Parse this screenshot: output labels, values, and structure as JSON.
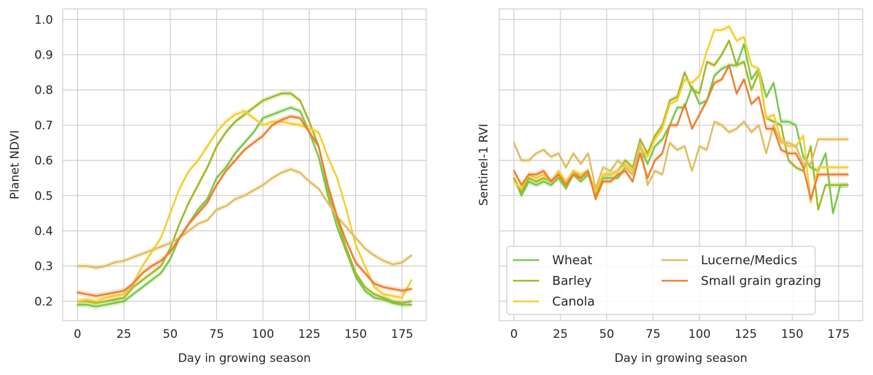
{
  "colors": {
    "Wheat": "#77c84a",
    "Barley": "#a1b825",
    "Canola": "#f5cf30",
    "Lucerne/Medics": "#e0bd63",
    "Small grain grazing": "#ee7f2f"
  },
  "chart_data": [
    {
      "type": "line",
      "xlabel": "Day in growing season",
      "ylabel": "Planet NDVI",
      "xlim": [
        -8,
        188
      ],
      "ylim": [
        0.145,
        1.03
      ],
      "xticks": [
        0,
        25,
        50,
        75,
        100,
        125,
        150,
        175
      ],
      "yticks": [
        0.2,
        0.3,
        0.4,
        0.5,
        0.6,
        0.7,
        0.8,
        0.9,
        1.0
      ],
      "grid": true,
      "series": [
        {
          "name": "Wheat",
          "x": [
            0,
            5,
            10,
            15,
            20,
            25,
            30,
            35,
            40,
            45,
            50,
            55,
            60,
            65,
            70,
            75,
            80,
            85,
            90,
            95,
            100,
            105,
            110,
            115,
            120,
            125,
            130,
            135,
            140,
            145,
            150,
            155,
            160,
            165,
            170,
            175,
            180
          ],
          "y": [
            0.19,
            0.19,
            0.185,
            0.19,
            0.195,
            0.2,
            0.22,
            0.24,
            0.26,
            0.28,
            0.32,
            0.38,
            0.42,
            0.46,
            0.49,
            0.55,
            0.58,
            0.62,
            0.65,
            0.68,
            0.72,
            0.73,
            0.74,
            0.75,
            0.74,
            0.68,
            0.61,
            0.5,
            0.41,
            0.34,
            0.27,
            0.23,
            0.21,
            0.205,
            0.195,
            0.19,
            0.19
          ]
        },
        {
          "name": "Barley",
          "x": [
            0,
            5,
            10,
            15,
            20,
            25,
            30,
            35,
            40,
            45,
            50,
            55,
            60,
            65,
            70,
            75,
            80,
            85,
            90,
            95,
            100,
            105,
            110,
            115,
            120,
            125,
            130,
            135,
            140,
            145,
            150,
            155,
            160,
            165,
            170,
            175,
            180
          ],
          "y": [
            0.2,
            0.2,
            0.195,
            0.2,
            0.205,
            0.21,
            0.24,
            0.26,
            0.28,
            0.3,
            0.35,
            0.42,
            0.48,
            0.53,
            0.58,
            0.64,
            0.68,
            0.71,
            0.73,
            0.75,
            0.77,
            0.78,
            0.79,
            0.79,
            0.77,
            0.71,
            0.64,
            0.52,
            0.43,
            0.35,
            0.28,
            0.24,
            0.22,
            0.21,
            0.2,
            0.195,
            0.2
          ]
        },
        {
          "name": "Canola",
          "x": [
            0,
            5,
            10,
            15,
            20,
            25,
            30,
            35,
            40,
            45,
            50,
            55,
            60,
            65,
            70,
            75,
            80,
            85,
            90,
            95,
            100,
            105,
            110,
            115,
            120,
            125,
            130,
            135,
            140,
            145,
            150,
            155,
            160,
            165,
            170,
            175,
            180
          ],
          "y": [
            0.2,
            0.205,
            0.2,
            0.21,
            0.215,
            0.22,
            0.25,
            0.3,
            0.34,
            0.38,
            0.45,
            0.52,
            0.57,
            0.6,
            0.64,
            0.68,
            0.71,
            0.73,
            0.74,
            0.72,
            0.7,
            0.71,
            0.71,
            0.705,
            0.7,
            0.69,
            0.68,
            0.61,
            0.55,
            0.46,
            0.36,
            0.3,
            0.24,
            0.22,
            0.215,
            0.21,
            0.26
          ]
        },
        {
          "name": "Lucerne/Medics",
          "x": [
            0,
            5,
            10,
            15,
            20,
            25,
            30,
            35,
            40,
            45,
            50,
            55,
            60,
            65,
            70,
            75,
            80,
            85,
            90,
            95,
            100,
            105,
            110,
            115,
            120,
            125,
            130,
            135,
            140,
            145,
            150,
            155,
            160,
            165,
            170,
            175,
            180
          ],
          "y": [
            0.3,
            0.3,
            0.295,
            0.3,
            0.31,
            0.315,
            0.325,
            0.335,
            0.345,
            0.355,
            0.365,
            0.38,
            0.4,
            0.42,
            0.43,
            0.46,
            0.47,
            0.49,
            0.5,
            0.515,
            0.53,
            0.55,
            0.565,
            0.575,
            0.565,
            0.54,
            0.52,
            0.48,
            0.44,
            0.41,
            0.38,
            0.35,
            0.33,
            0.315,
            0.305,
            0.31,
            0.33
          ]
        },
        {
          "name": "Small grain grazing",
          "x": [
            0,
            5,
            10,
            15,
            20,
            25,
            30,
            35,
            40,
            45,
            50,
            55,
            60,
            65,
            70,
            75,
            80,
            85,
            90,
            95,
            100,
            105,
            110,
            115,
            120,
            125,
            130,
            135,
            140,
            145,
            150,
            155,
            160,
            165,
            170,
            175,
            180
          ],
          "y": [
            0.225,
            0.22,
            0.215,
            0.22,
            0.225,
            0.23,
            0.25,
            0.28,
            0.3,
            0.315,
            0.34,
            0.38,
            0.42,
            0.45,
            0.48,
            0.53,
            0.57,
            0.6,
            0.63,
            0.65,
            0.67,
            0.7,
            0.715,
            0.725,
            0.72,
            0.68,
            0.64,
            0.53,
            0.44,
            0.37,
            0.31,
            0.28,
            0.25,
            0.24,
            0.235,
            0.23,
            0.235
          ]
        }
      ]
    },
    {
      "type": "line",
      "xlabel": "Day in growing season",
      "ylabel": "Sentinel-1 RVI",
      "xlim": [
        -8,
        188
      ],
      "ylim": [
        0.145,
        1.03
      ],
      "xticks": [
        0,
        25,
        50,
        75,
        100,
        125,
        150,
        175
      ],
      "yticks": [
        0.2,
        0.3,
        0.4,
        0.5,
        0.6,
        0.7,
        0.8,
        0.9,
        1.0
      ],
      "grid": true,
      "legend": {
        "placement": "lower-left",
        "columns": 2,
        "entries": [
          "Wheat",
          "Barley",
          "Canola",
          "Lucerne/Medics",
          "Small grain grazing"
        ]
      },
      "series": [
        {
          "name": "Wheat",
          "x": [
            0,
            4,
            8,
            12,
            16,
            20,
            24,
            28,
            32,
            36,
            40,
            44,
            48,
            52,
            56,
            60,
            64,
            68,
            72,
            76,
            80,
            84,
            88,
            92,
            96,
            100,
            104,
            108,
            112,
            116,
            120,
            124,
            128,
            132,
            136,
            140,
            144,
            148,
            152,
            156,
            160,
            164,
            168,
            172,
            176,
            180
          ],
          "y": [
            0.55,
            0.5,
            0.54,
            0.53,
            0.54,
            0.53,
            0.55,
            0.52,
            0.56,
            0.54,
            0.56,
            0.5,
            0.55,
            0.55,
            0.55,
            0.58,
            0.56,
            0.64,
            0.59,
            0.64,
            0.66,
            0.7,
            0.75,
            0.75,
            0.81,
            0.76,
            0.77,
            0.84,
            0.86,
            0.87,
            0.87,
            0.93,
            0.83,
            0.86,
            0.78,
            0.82,
            0.71,
            0.71,
            0.7,
            0.61,
            0.58,
            0.57,
            0.62,
            0.45,
            0.53,
            0.53
          ]
        },
        {
          "name": "Barley",
          "x": [
            0,
            4,
            8,
            12,
            16,
            20,
            24,
            28,
            32,
            36,
            40,
            44,
            48,
            52,
            56,
            60,
            64,
            68,
            72,
            76,
            80,
            84,
            88,
            92,
            96,
            100,
            104,
            108,
            112,
            116,
            120,
            124,
            128,
            132,
            136,
            140,
            144,
            148,
            152,
            156,
            160,
            164,
            168,
            172,
            176,
            180
          ],
          "y": [
            0.55,
            0.51,
            0.55,
            0.54,
            0.55,
            0.54,
            0.56,
            0.53,
            0.57,
            0.55,
            0.57,
            0.5,
            0.56,
            0.56,
            0.57,
            0.6,
            0.58,
            0.66,
            0.62,
            0.67,
            0.7,
            0.77,
            0.78,
            0.85,
            0.8,
            0.79,
            0.88,
            0.87,
            0.9,
            0.94,
            0.87,
            0.88,
            0.8,
            0.85,
            0.72,
            0.71,
            0.7,
            0.6,
            0.58,
            0.57,
            0.64,
            0.46,
            0.53,
            0.53,
            0.53,
            0.53
          ]
        },
        {
          "name": "Canola",
          "x": [
            0,
            4,
            8,
            12,
            16,
            20,
            24,
            28,
            32,
            36,
            40,
            44,
            48,
            52,
            56,
            60,
            64,
            68,
            72,
            76,
            80,
            84,
            88,
            92,
            96,
            100,
            104,
            108,
            112,
            116,
            120,
            124,
            128,
            132,
            136,
            140,
            144,
            148,
            152,
            156,
            160,
            164,
            168,
            172,
            176,
            180
          ],
          "y": [
            0.54,
            0.52,
            0.56,
            0.55,
            0.56,
            0.54,
            0.57,
            0.54,
            0.57,
            0.56,
            0.57,
            0.51,
            0.56,
            0.56,
            0.57,
            0.59,
            0.57,
            0.64,
            0.61,
            0.66,
            0.69,
            0.76,
            0.77,
            0.83,
            0.82,
            0.84,
            0.91,
            0.97,
            0.97,
            0.98,
            0.94,
            0.95,
            0.87,
            0.86,
            0.72,
            0.73,
            0.66,
            0.64,
            0.64,
            0.67,
            0.48,
            0.58,
            0.58,
            0.58,
            0.58,
            0.58
          ]
        },
        {
          "name": "Lucerne/Medics",
          "x": [
            0,
            4,
            8,
            12,
            16,
            20,
            24,
            28,
            32,
            36,
            40,
            44,
            48,
            52,
            56,
            60,
            64,
            68,
            72,
            76,
            80,
            84,
            88,
            92,
            96,
            100,
            104,
            108,
            112,
            116,
            120,
            124,
            128,
            132,
            136,
            140,
            144,
            148,
            152,
            156,
            160,
            164,
            168,
            172,
            176,
            180
          ],
          "y": [
            0.65,
            0.6,
            0.6,
            0.62,
            0.63,
            0.61,
            0.62,
            0.58,
            0.62,
            0.59,
            0.62,
            0.52,
            0.58,
            0.57,
            0.6,
            0.58,
            0.56,
            0.65,
            0.53,
            0.57,
            0.56,
            0.65,
            0.63,
            0.64,
            0.57,
            0.64,
            0.63,
            0.71,
            0.7,
            0.68,
            0.69,
            0.71,
            0.68,
            0.7,
            0.62,
            0.7,
            0.65,
            0.65,
            0.64,
            0.59,
            0.59,
            0.66,
            0.66,
            0.66,
            0.66,
            0.66
          ]
        },
        {
          "name": "Small grain grazing",
          "x": [
            0,
            4,
            8,
            12,
            16,
            20,
            24,
            28,
            32,
            36,
            40,
            44,
            48,
            52,
            56,
            60,
            64,
            68,
            72,
            76,
            80,
            84,
            88,
            92,
            96,
            100,
            104,
            108,
            112,
            116,
            120,
            124,
            128,
            132,
            136,
            140,
            144,
            148,
            152,
            156,
            160,
            164,
            168,
            172,
            176,
            180
          ],
          "y": [
            0.57,
            0.53,
            0.56,
            0.56,
            0.57,
            0.54,
            0.56,
            0.53,
            0.56,
            0.55,
            0.57,
            0.49,
            0.54,
            0.54,
            0.56,
            0.57,
            0.54,
            0.62,
            0.55,
            0.6,
            0.62,
            0.7,
            0.7,
            0.76,
            0.69,
            0.73,
            0.77,
            0.82,
            0.83,
            0.87,
            0.79,
            0.83,
            0.76,
            0.78,
            0.69,
            0.69,
            0.63,
            0.62,
            0.62,
            0.58,
            0.49,
            0.56,
            0.56,
            0.56,
            0.56,
            0.56
          ]
        }
      ]
    }
  ]
}
